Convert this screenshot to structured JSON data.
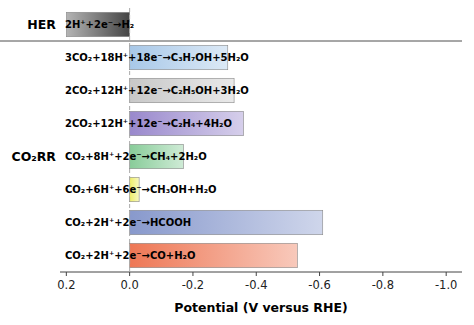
{
  "chart_data": {
    "type": "bar",
    "orientation": "horizontal",
    "xlabel": "Potential (V versus RHE)",
    "annotations": [
      "HER",
      "CO₂RR"
    ],
    "categories": [
      "2H⁺+2e⁻→H₂",
      "3CO₂+18H⁺+18e⁻→C₃H₇OH+5H₂O",
      "2CO₂+12H⁺+12e⁻→C₂H₅OH+3H₂O",
      "2CO₂+12H⁺+12e⁻→C₂H₄+4H₂O",
      "CO₂+8H⁺+2e⁻→CH₄+2H₂O",
      "CO₂+6H⁺+6e⁻→CH₃OH+H₂O",
      "CO₂+2H⁺+2e⁻→HCOOH",
      "CO₂+2H⁺+2e⁻→CO+H₂O"
    ],
    "values": [
      0.2,
      -0.31,
      -0.33,
      -0.36,
      -0.17,
      -0.03,
      -0.61,
      -0.53
    ],
    "colors": [
      "#444444",
      "#a8c8e8",
      "#c8c8c8",
      "#9988cc",
      "#88cc99",
      "#eeee66",
      "#8899cc",
      "#ee7755"
    ],
    "xlim": [
      0.22,
      -1.05
    ],
    "xticks": [
      0.2,
      {
        "value": 0,
        "label": "0.0"
      },
      -0.2,
      -0.4,
      -0.6,
      -0.8,
      {
        "value": -1,
        "label": "-1.0"
      }
    ],
    "grid": false
  }
}
